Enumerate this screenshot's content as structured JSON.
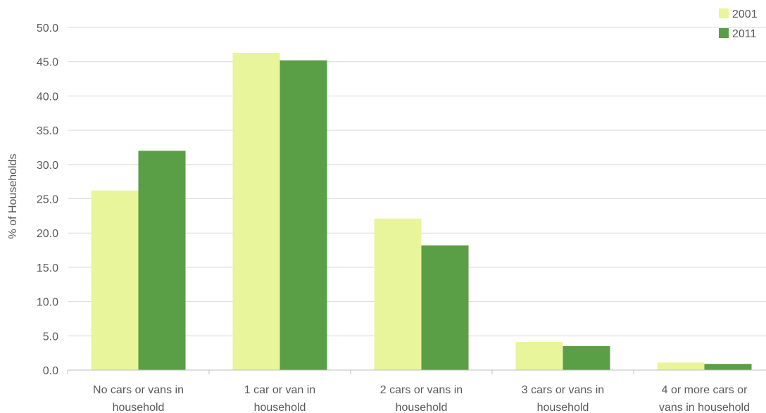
{
  "chart_data": {
    "type": "bar",
    "title": "",
    "xlabel": "",
    "ylabel": "% of Households",
    "ylim": [
      0,
      50
    ],
    "y_ticks": [
      "0.0",
      "5.0",
      "10.0",
      "15.0",
      "20.0",
      "25.0",
      "30.0",
      "35.0",
      "40.0",
      "45.0",
      "50.0"
    ],
    "grid": true,
    "legend_position": "top-right",
    "categories": [
      [
        "No cars or vans in",
        "household"
      ],
      [
        "1 car or van in",
        "household"
      ],
      [
        "2 cars or vans in",
        "household"
      ],
      [
        "3 cars or vans in",
        "household"
      ],
      [
        "4 or more cars or",
        "vans in household"
      ]
    ],
    "series": [
      {
        "name": "2001",
        "color": "#e8f59a",
        "values": [
          26.2,
          46.3,
          22.1,
          4.1,
          1.1
        ]
      },
      {
        "name": "2011",
        "color": "#5a9e45",
        "values": [
          32.0,
          45.2,
          18.2,
          3.5,
          0.9
        ]
      }
    ]
  }
}
